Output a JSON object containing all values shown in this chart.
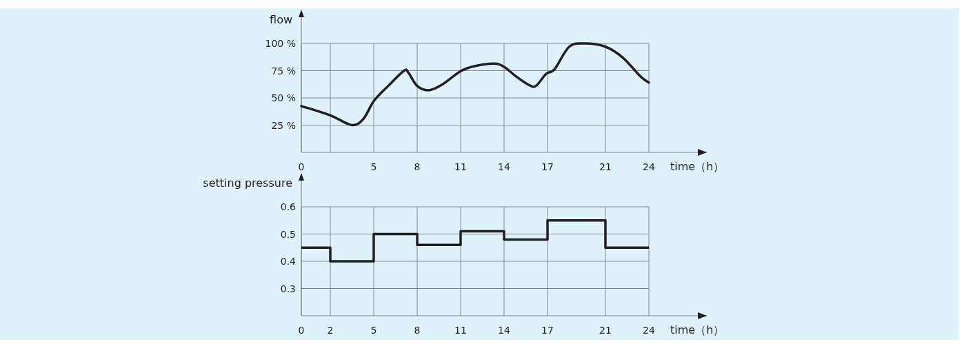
{
  "chart_data": [
    {
      "type": "line",
      "ylabel": "flow",
      "xlabel": "time（h）",
      "color": "#231f20",
      "grid": true,
      "x": [
        0,
        2,
        3.5,
        4.3,
        5,
        6.0,
        7.1,
        7.4,
        8,
        8.8,
        9.7,
        11,
        11.9,
        13.3,
        14,
        14.8,
        15.7,
        16.2,
        16.9,
        17.5,
        18.5,
        19.6,
        21,
        22.2,
        23.4,
        24
      ],
      "values": [
        42.5,
        34,
        25,
        31,
        47,
        61,
        75,
        73,
        61,
        57,
        62,
        74.5,
        79,
        81.5,
        78.5,
        70,
        62,
        61,
        72,
        76.5,
        97,
        100,
        97,
        87,
        70,
        64
      ],
      "xlim": [
        0,
        28
      ],
      "ylim": [
        0,
        100
      ],
      "xticks": [
        0,
        {
          "value": 2,
          "label": null
        },
        5,
        8,
        11,
        14,
        17,
        21,
        24
      ],
      "yticks": [
        {
          "value": 25,
          "label": "25 %"
        },
        {
          "value": 50,
          "label": "50 %"
        },
        {
          "value": 75,
          "label": "75 %"
        },
        {
          "value": 100,
          "label": "100 %"
        }
      ]
    },
    {
      "type": "step",
      "ylabel": "setting pressure",
      "xlabel": "time（h）",
      "color": "#231f20",
      "grid": true,
      "x": [
        0,
        2,
        5,
        8,
        11,
        14,
        17,
        21,
        24
      ],
      "values": [
        0.45,
        0.4,
        0.5,
        0.46,
        0.51,
        0.48,
        0.55,
        0.45,
        0.45
      ],
      "xlim": [
        0,
        28
      ],
      "ylim": [
        0.2,
        0.6
      ],
      "xticks": [
        0,
        2,
        5,
        8,
        11,
        14,
        17,
        21,
        24
      ],
      "yticks": [
        0.3,
        0.4,
        0.5,
        0.6
      ]
    }
  ]
}
